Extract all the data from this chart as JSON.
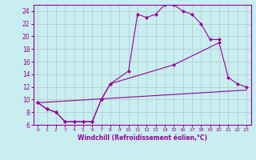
{
  "xlabel": "Windchill (Refroidissement éolien,°C)",
  "background_color": "#c8eef0",
  "grid_color": "#b0c8c8",
  "line_color": "#990099",
  "xlim": [
    -0.5,
    23.5
  ],
  "ylim": [
    6,
    25
  ],
  "xticks": [
    0,
    1,
    2,
    3,
    4,
    5,
    6,
    7,
    8,
    9,
    10,
    11,
    12,
    13,
    14,
    15,
    16,
    17,
    18,
    19,
    20,
    21,
    22,
    23
  ],
  "yticks": [
    6,
    8,
    10,
    12,
    14,
    16,
    18,
    20,
    22,
    24
  ],
  "line1_x": [
    0,
    1,
    2,
    3,
    4,
    5,
    6,
    7,
    8,
    10,
    11,
    12,
    13,
    14,
    15,
    16,
    17,
    18,
    19,
    20
  ],
  "line1_y": [
    9.5,
    8.5,
    8.0,
    6.5,
    6.5,
    6.5,
    6.5,
    10.0,
    12.5,
    14.5,
    23.5,
    23.0,
    23.5,
    25.0,
    25.0,
    24.0,
    23.5,
    22.0,
    19.5,
    19.5
  ],
  "line2_x": [
    0,
    1,
    2,
    3,
    4,
    5,
    6,
    7,
    8,
    15,
    20,
    21,
    22,
    23
  ],
  "line2_y": [
    9.5,
    8.5,
    8.0,
    6.5,
    6.5,
    6.5,
    6.5,
    10.0,
    12.5,
    15.5,
    19.0,
    13.5,
    12.5,
    12.0
  ],
  "line3_x": [
    0,
    23
  ],
  "line3_y": [
    9.5,
    11.5
  ],
  "xlabel_fontsize": 5.5,
  "ytick_fontsize": 5.5,
  "xtick_fontsize": 4.5
}
